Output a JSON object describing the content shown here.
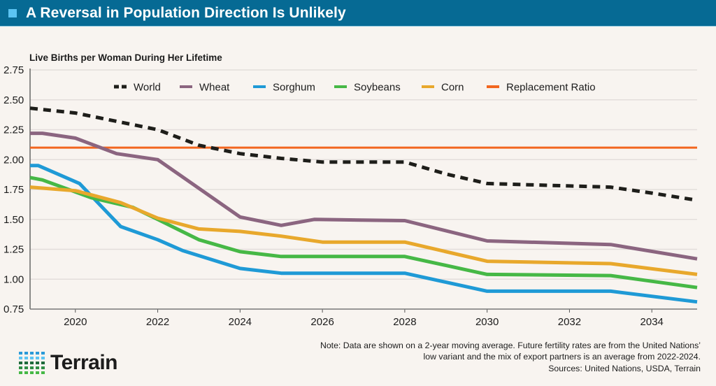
{
  "header": {
    "title": "A Reversal in Population Direction Is Unlikely",
    "accent_color": "#066a94",
    "bullet_color": "#5cc4f3"
  },
  "chart_data": {
    "type": "line",
    "title": "A Reversal in Population Direction Is Unlikely",
    "ylabel": "Live Births per Woman During Her Lifetime",
    "xlabel": "",
    "xlim": [
      2018.9,
      2035.1
    ],
    "ylim": [
      0.75,
      2.75
    ],
    "grid": true,
    "legend_position": "top-center",
    "x_ticks": [
      "2020",
      "2022",
      "2024",
      "2026",
      "2028",
      "2030",
      "2032",
      "2034"
    ],
    "y_ticks": [
      "2.75",
      "2.50",
      "2.25",
      "2.00",
      "1.75",
      "1.50",
      "1.25",
      "1.00",
      "0.75"
    ],
    "series": [
      {
        "name": "World",
        "color": "#1e1e1a",
        "dashed": true,
        "x": [
          2018.9,
          2020,
          2021,
          2022,
          2023,
          2024,
          2025,
          2026,
          2027,
          2028,
          2029,
          2030,
          2031,
          2032,
          2033,
          2034,
          2035.1
        ],
        "y": [
          2.43,
          2.39,
          2.32,
          2.25,
          2.12,
          2.05,
          2.01,
          1.98,
          1.98,
          1.98,
          1.88,
          1.8,
          1.79,
          1.78,
          1.77,
          1.72,
          1.66
        ]
      },
      {
        "name": "Wheat",
        "color": "#8b6580",
        "dashed": false,
        "x": [
          2018.9,
          2019.2,
          2020,
          2021,
          2022,
          2024,
          2025,
          2025.8,
          2028,
          2030,
          2033,
          2035.1
        ],
        "y": [
          2.22,
          2.22,
          2.18,
          2.05,
          2.0,
          1.52,
          1.45,
          1.5,
          1.49,
          1.32,
          1.29,
          1.17
        ]
      },
      {
        "name": "Sorghum",
        "color": "#1f9ad6",
        "dashed": false,
        "x": [
          2018.9,
          2019.1,
          2020.1,
          2021.1,
          2022,
          2022.6,
          2024,
          2025,
          2028,
          2030,
          2033,
          2035.1
        ],
        "y": [
          1.95,
          1.95,
          1.8,
          1.44,
          1.33,
          1.24,
          1.09,
          1.05,
          1.05,
          0.9,
          0.9,
          0.81
        ]
      },
      {
        "name": "Soybeans",
        "color": "#46b846",
        "dashed": false,
        "x": [
          2018.9,
          2019.2,
          2020.4,
          2021.4,
          2022,
          2023,
          2024,
          2025,
          2028,
          2030,
          2033,
          2035.1
        ],
        "y": [
          1.85,
          1.83,
          1.68,
          1.6,
          1.5,
          1.33,
          1.23,
          1.19,
          1.19,
          1.04,
          1.03,
          0.93
        ]
      },
      {
        "name": "Corn",
        "color": "#e8a82c",
        "dashed": false,
        "x": [
          2018.9,
          2020,
          2021.1,
          2022,
          2023,
          2024,
          2025,
          2026,
          2028,
          2030,
          2033,
          2035.1
        ],
        "y": [
          1.77,
          1.74,
          1.64,
          1.51,
          1.42,
          1.4,
          1.36,
          1.31,
          1.31,
          1.15,
          1.13,
          1.04
        ]
      },
      {
        "name": "Replacement Ratio",
        "color": "#f2661f",
        "dashed": false,
        "x": [
          2018.9,
          2035.1
        ],
        "y": [
          2.1,
          2.1
        ]
      }
    ]
  },
  "footer": {
    "logo_text": "Terrain",
    "note_line1": "Note: Data are shown on a 2-year moving average. Future fertility rates are from the United Nations’",
    "note_line2": "low variant and the mix of export partners is an average from 2022-2024.",
    "sources": "Sources: United Nations, USDA, Terrain"
  }
}
